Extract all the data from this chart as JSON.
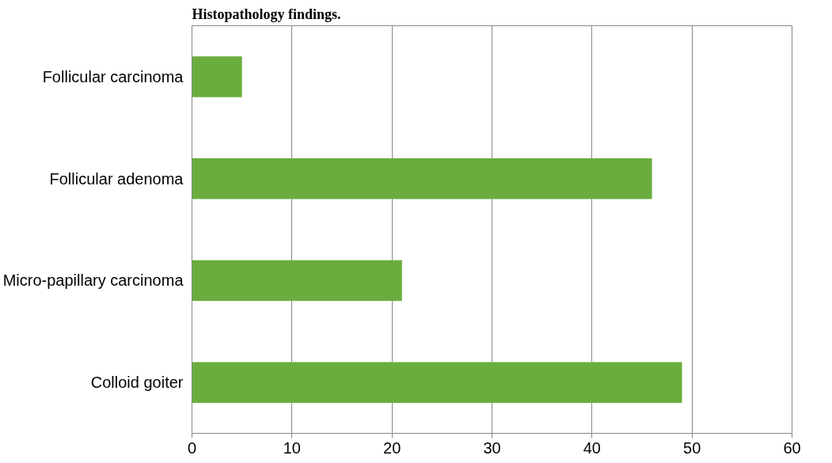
{
  "chart_data": {
    "type": "bar",
    "orientation": "horizontal",
    "title": "Histopathology findings.",
    "categories": [
      "Follicular carcinoma",
      "Follicular adenoma",
      "Micro-papillary carcinoma",
      "Colloid goiter"
    ],
    "values": [
      5,
      46,
      21,
      49
    ],
    "color": "#6aad3e",
    "xlim": [
      0,
      60
    ],
    "xticks": [
      0,
      10,
      20,
      30,
      40,
      50,
      60
    ],
    "grid": "x"
  }
}
